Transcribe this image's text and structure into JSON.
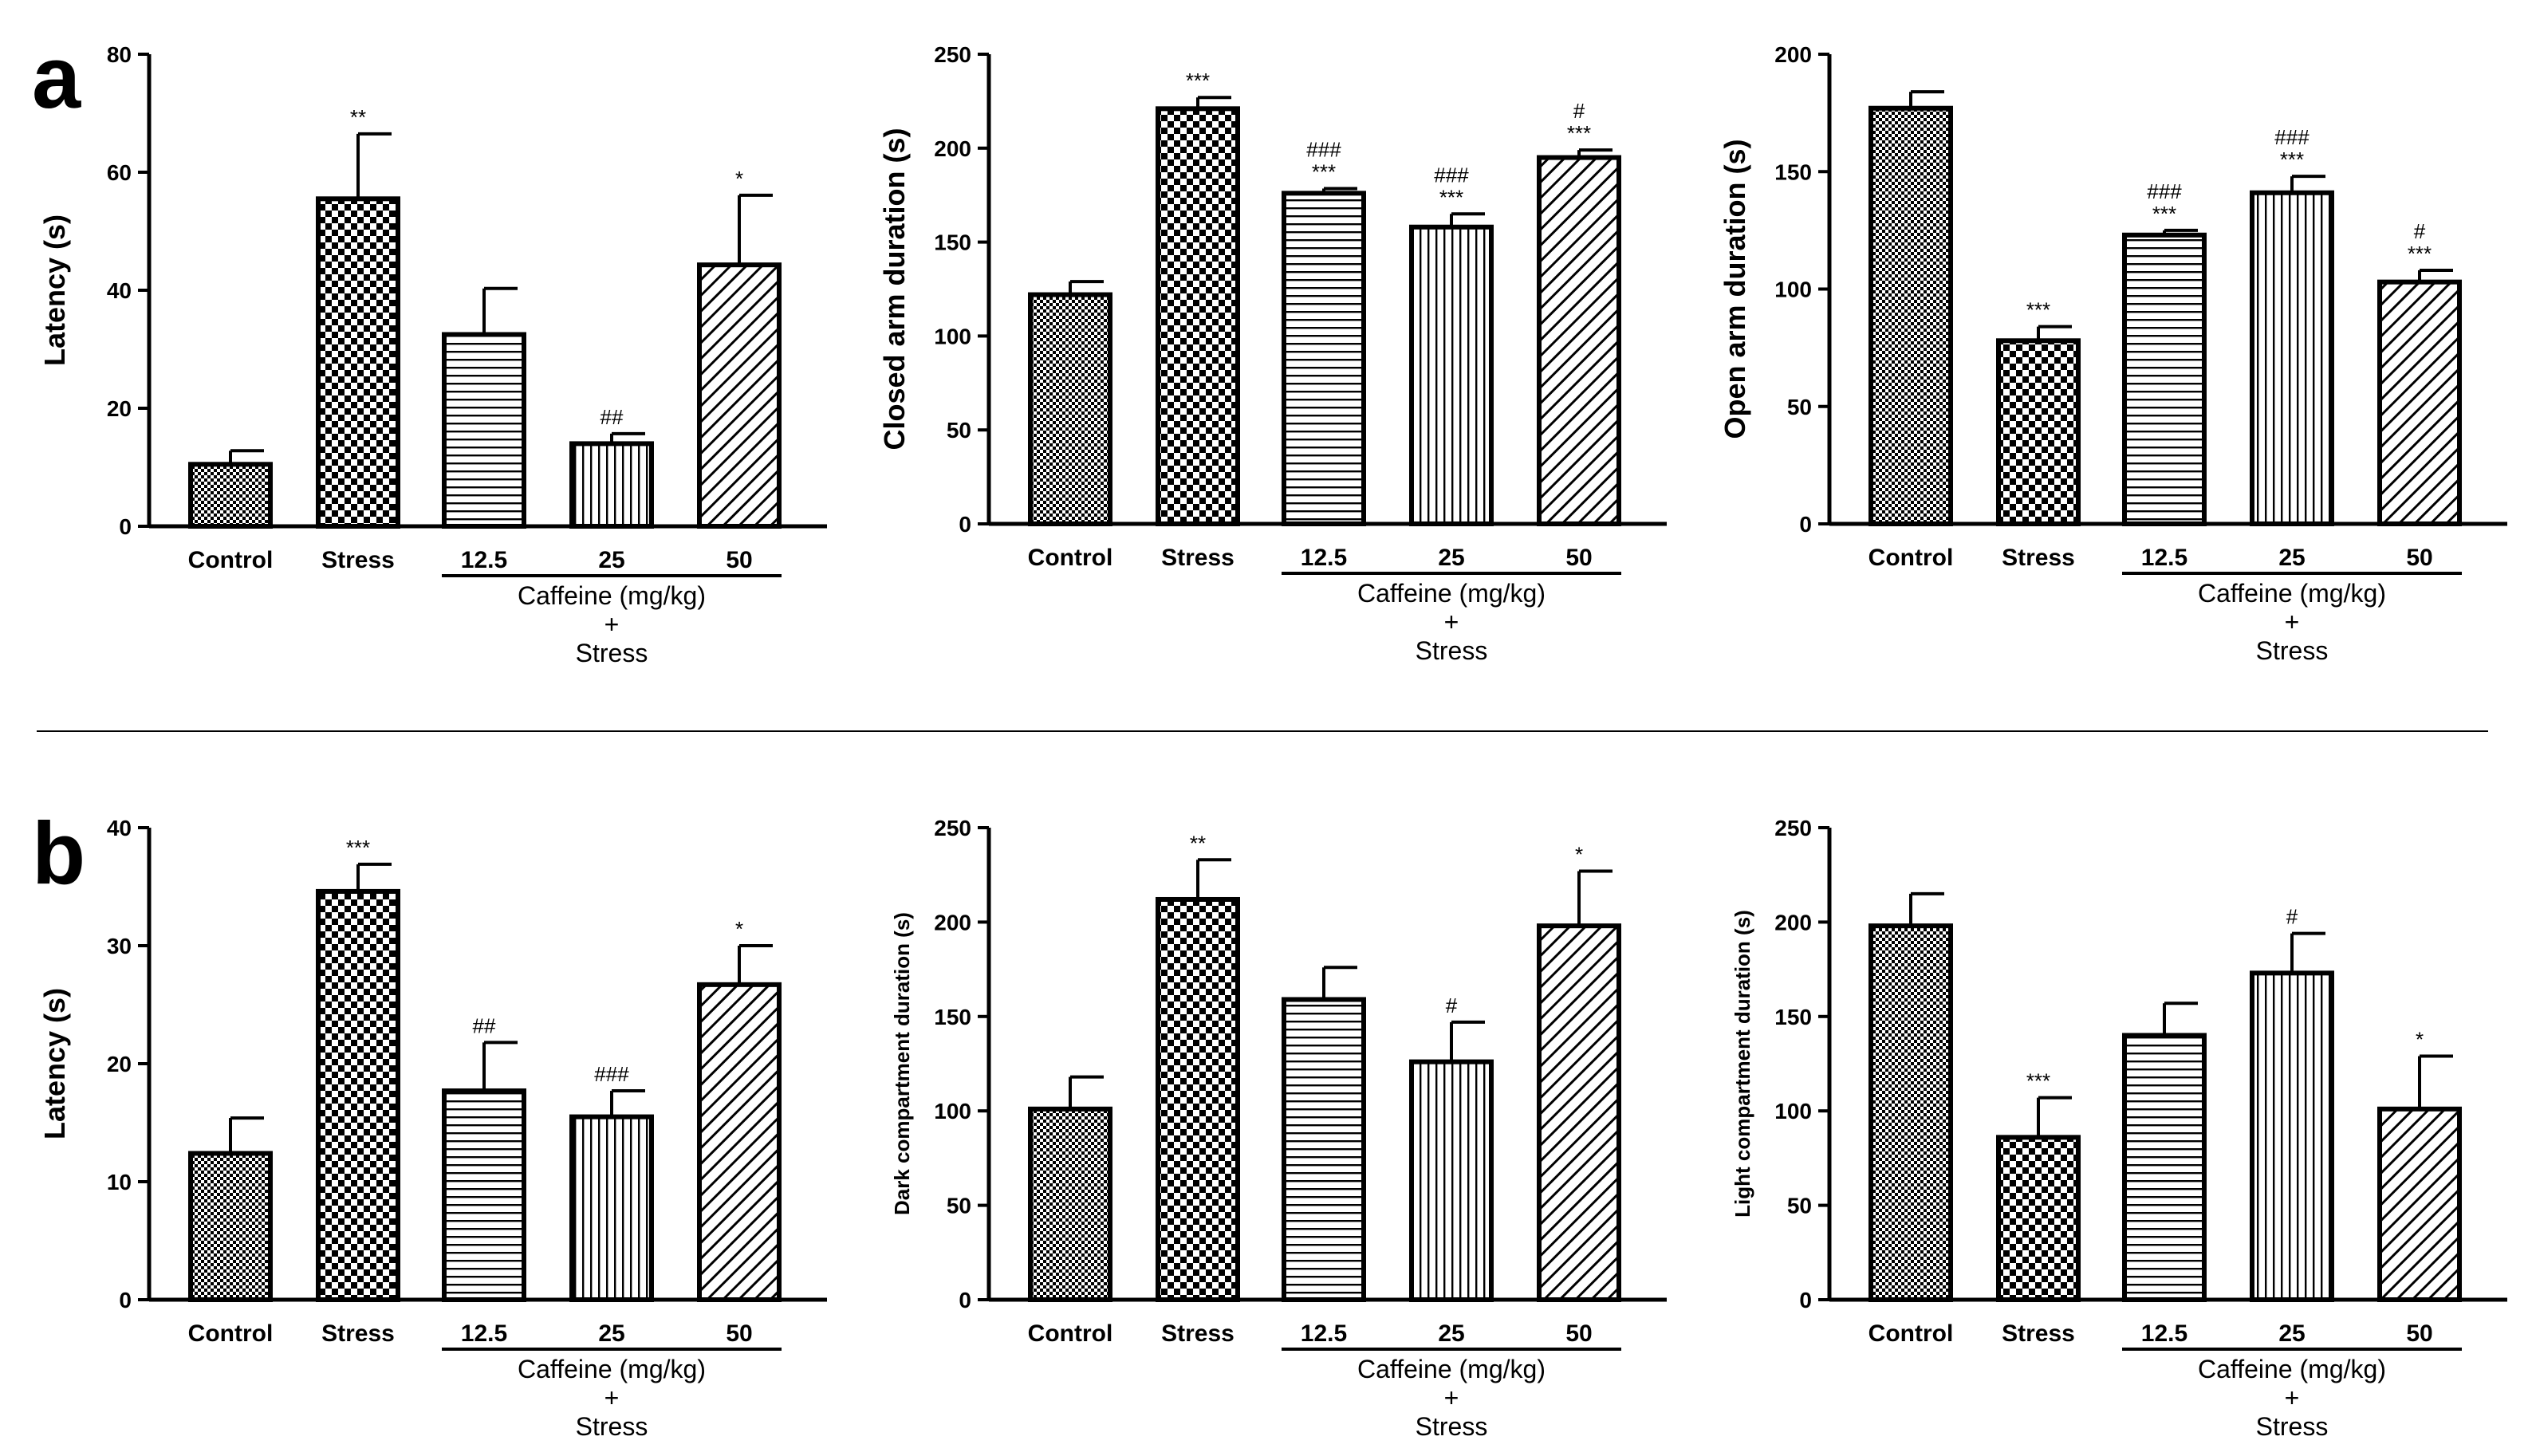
{
  "panels": [
    {
      "id": "a",
      "label": "a"
    },
    {
      "id": "b",
      "label": "b"
    }
  ],
  "group_label": {
    "line1": "Caffeine (mg/kg)",
    "line2": "+",
    "line3": "Stress"
  },
  "chart_data": [
    {
      "type": "bar",
      "panel": "a",
      "categories": [
        "Control",
        "Stress",
        "12.5",
        "25",
        "50"
      ],
      "ylabel": "Latency (s)",
      "ylim": [
        0,
        80
      ],
      "yticks": [
        0,
        20,
        40,
        60,
        80
      ],
      "values": [
        10.5,
        55.5,
        32.5,
        14,
        44.3
      ],
      "errors": [
        2.3,
        11,
        7.8,
        1.7,
        11.8
      ],
      "annotations": [
        [],
        [
          "**"
        ],
        [],
        [
          "##"
        ],
        [
          "*"
        ]
      ],
      "patterns": [
        "crosshatch",
        "checker",
        "hlines",
        "vlines",
        "diag"
      ]
    },
    {
      "type": "bar",
      "panel": "a",
      "categories": [
        "Control",
        "Stress",
        "12.5",
        "25",
        "50"
      ],
      "ylabel": "Closed arm duration (s)",
      "ylim": [
        0,
        250
      ],
      "yticks": [
        0,
        50,
        100,
        150,
        200,
        250
      ],
      "values": [
        122,
        221,
        176,
        158,
        195
      ],
      "errors": [
        7,
        6,
        2.5,
        7,
        4
      ],
      "annotations": [
        [],
        [
          "***"
        ],
        [
          "###",
          "***"
        ],
        [
          "###",
          "***"
        ],
        [
          "#",
          "***"
        ]
      ],
      "patterns": [
        "crosshatch",
        "checker",
        "hlines",
        "vlines",
        "diag"
      ]
    },
    {
      "type": "bar",
      "panel": "a",
      "categories": [
        "Control",
        "Stress",
        "12.5",
        "25",
        "50"
      ],
      "ylabel": "Open arm duration (s)",
      "ylim": [
        0,
        200
      ],
      "yticks": [
        0,
        50,
        100,
        150,
        200
      ],
      "values": [
        177,
        78,
        123,
        141,
        103
      ],
      "errors": [
        7,
        6,
        2,
        7,
        5
      ],
      "annotations": [
        [],
        [
          "***"
        ],
        [
          "###",
          "***"
        ],
        [
          "###",
          "***"
        ],
        [
          "#",
          "***"
        ]
      ],
      "patterns": [
        "crosshatch",
        "checker",
        "hlines",
        "vlines",
        "diag"
      ]
    },
    {
      "type": "bar",
      "panel": "b",
      "categories": [
        "Control",
        "Stress",
        "12.5",
        "25",
        "50"
      ],
      "ylabel": "Latency (s)",
      "ylim": [
        0,
        40
      ],
      "yticks": [
        0,
        10,
        20,
        30,
        40
      ],
      "values": [
        12.4,
        34.6,
        17.7,
        15.5,
        26.7
      ],
      "errors": [
        3,
        2.3,
        4.1,
        2.2,
        3.3
      ],
      "annotations": [
        [],
        [
          "***"
        ],
        [
          "##"
        ],
        [
          "###"
        ],
        [
          "*"
        ]
      ],
      "patterns": [
        "crosshatch",
        "checker",
        "hlines",
        "vlines",
        "diag"
      ]
    },
    {
      "type": "bar",
      "panel": "b",
      "categories": [
        "Control",
        "Stress",
        "12.5",
        "25",
        "50"
      ],
      "ylabel": "Dark compartment duration (s)",
      "ylim": [
        0,
        250
      ],
      "yticks": [
        0,
        50,
        100,
        150,
        200,
        250
      ],
      "values": [
        101,
        212,
        159,
        126,
        198
      ],
      "errors": [
        17,
        21,
        17,
        21,
        29
      ],
      "annotations": [
        [],
        [
          "**"
        ],
        [],
        [
          "#"
        ],
        [
          "*"
        ]
      ],
      "patterns": [
        "crosshatch",
        "checker",
        "hlines",
        "vlines",
        "diag"
      ]
    },
    {
      "type": "bar",
      "panel": "b",
      "categories": [
        "Control",
        "Stress",
        "12.5",
        "25",
        "50"
      ],
      "ylabel": "Light compartment duration (s)",
      "ylim": [
        0,
        250
      ],
      "yticks": [
        0,
        50,
        100,
        150,
        200,
        250
      ],
      "values": [
        198,
        86,
        140,
        173,
        101
      ],
      "errors": [
        17,
        21,
        17,
        21,
        28
      ],
      "annotations": [
        [],
        [
          "***"
        ],
        [],
        [
          "#"
        ],
        [
          "*"
        ]
      ],
      "patterns": [
        "crosshatch",
        "checker",
        "hlines",
        "vlines",
        "diag"
      ]
    }
  ]
}
